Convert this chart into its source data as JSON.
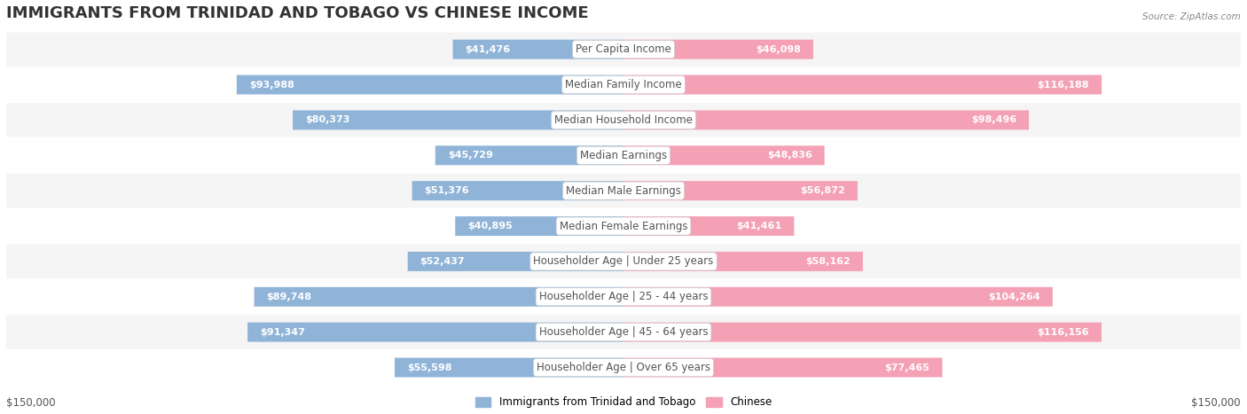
{
  "title": "IMMIGRANTS FROM TRINIDAD AND TOBAGO VS CHINESE INCOME",
  "source": "Source: ZipAtlas.com",
  "categories": [
    "Per Capita Income",
    "Median Family Income",
    "Median Household Income",
    "Median Earnings",
    "Median Male Earnings",
    "Median Female Earnings",
    "Householder Age | Under 25 years",
    "Householder Age | 25 - 44 years",
    "Householder Age | 45 - 64 years",
    "Householder Age | Over 65 years"
  ],
  "left_values": [
    41476,
    93988,
    80373,
    45729,
    51376,
    40895,
    52437,
    89748,
    91347,
    55598
  ],
  "right_values": [
    46098,
    116188,
    98496,
    48836,
    56872,
    41461,
    58162,
    104264,
    116156,
    77465
  ],
  "left_labels": [
    "$41,476",
    "$93,988",
    "$80,373",
    "$45,729",
    "$51,376",
    "$40,895",
    "$52,437",
    "$89,748",
    "$91,347",
    "$55,598"
  ],
  "right_labels": [
    "$46,098",
    "$116,188",
    "$98,496",
    "$48,836",
    "$56,872",
    "$41,461",
    "$58,162",
    "$104,264",
    "$116,156",
    "$77,465"
  ],
  "max_value": 150000,
  "left_color": "#90b4d8",
  "right_color": "#f4a0b5",
  "left_color_dark": "#6699cc",
  "right_color_dark": "#ee6688",
  "bar_bg_color": "#f0f0f0",
  "row_bg_color": "#f5f5f5",
  "row_bg_alt": "#ffffff",
  "left_legend": "Immigrants from Trinidad and Tobago",
  "right_legend": "Chinese",
  "axis_label_left": "$150,000",
  "axis_label_right": "$150,000",
  "title_fontsize": 13,
  "label_fontsize": 8.5,
  "category_fontsize": 8.5,
  "value_fontsize": 8
}
